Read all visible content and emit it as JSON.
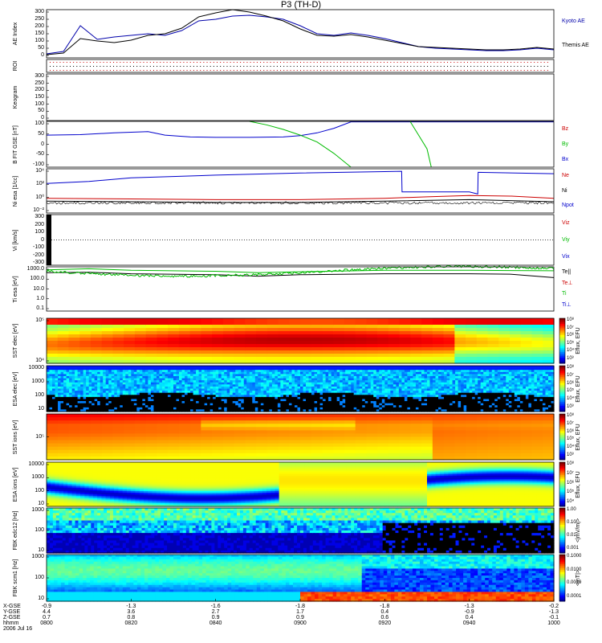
{
  "title": "P3 (TH-D)",
  "panels": [
    {
      "id": "ae",
      "ylabel": "AE Index",
      "ticks": [
        "300",
        "250",
        "200",
        "150",
        "100",
        "50",
        "0"
      ],
      "right": [
        {
          "text": "Kyoto AE",
          "color": "#0000aa"
        },
        {
          "text": "Themis AE",
          "color": "#000000"
        }
      ]
    },
    {
      "id": "roi",
      "ylabel": "ROI",
      "ticks": [],
      "right": []
    },
    {
      "id": "keogram",
      "ylabel": "Keogram",
      "ticks": [
        "300",
        "250",
        "200",
        "150",
        "100",
        "50",
        "0"
      ],
      "right": []
    },
    {
      "id": "bfgm",
      "ylabel": "B FIT\nGSE\n[nT]",
      "ticks": [
        "100",
        "50",
        "0",
        "-50",
        "-100"
      ],
      "right": [
        {
          "text": "Bz",
          "color": "#cc0000"
        },
        {
          "text": "By",
          "color": "#00bb00"
        },
        {
          "text": "Bx",
          "color": "#0000cc"
        }
      ]
    },
    {
      "id": "ni",
      "ylabel": "Ni\nesa\n[1/cc]",
      "ticks": [
        "10⁴",
        "10²",
        "10⁰",
        "10⁻²"
      ],
      "right": [
        {
          "text": "Ne",
          "color": "#cc0000"
        },
        {
          "text": "Ni",
          "color": "#000000"
        },
        {
          "text": "Npot",
          "color": "#0000cc"
        }
      ]
    },
    {
      "id": "vi",
      "ylabel": "Vi\n[km/s]",
      "ticks": [
        "300",
        "200",
        "100",
        "0",
        "-100",
        "-200",
        "-300"
      ],
      "right": [
        {
          "text": "Viz",
          "color": "#cc0000"
        },
        {
          "text": "Viy",
          "color": "#00bb00"
        },
        {
          "text": "Vix",
          "color": "#0000cc"
        }
      ]
    },
    {
      "id": "ti",
      "ylabel": "Ti\nesa\n[eV]",
      "ticks": [
        "1000.0",
        "100.0",
        "10.0",
        "1.0",
        "0.1"
      ],
      "right": [
        {
          "text": "Te||",
          "color": "#000000"
        },
        {
          "text": "Te⊥",
          "color": "#cc0000"
        },
        {
          "text": "Ti",
          "color": "#00bb00"
        },
        {
          "text": "Ti⊥",
          "color": "#0000cc"
        }
      ]
    },
    {
      "id": "sst_e",
      "ylabel": "SST\nelec\n[eV]",
      "ticks": [
        "10⁵",
        "10⁴"
      ],
      "right": []
    },
    {
      "id": "esa_e",
      "ylabel": "ESA\nelec\n[eV]",
      "ticks": [
        "10000",
        "1000",
        "100",
        "10"
      ],
      "right": []
    },
    {
      "id": "sst_i",
      "ylabel": "SST\nions\n[eV]",
      "ticks": [
        "10⁵"
      ],
      "right": []
    },
    {
      "id": "esa_i",
      "ylabel": "ESA\nions\n[eV]",
      "ticks": [
        "10000",
        "1000",
        "100",
        "10"
      ],
      "right": []
    },
    {
      "id": "fbk_e",
      "ylabel": "FBK\nedc12\n[Hz]",
      "ticks": [
        "1000",
        "100",
        "10"
      ],
      "right": []
    },
    {
      "id": "fbk_b",
      "ylabel": "FBK\nscm1\n[Hz]",
      "ticks": [
        "1000",
        "100",
        "10"
      ],
      "right": []
    }
  ],
  "colorbars": [
    {
      "label": "Eflux, EFU",
      "ticks": [
        "10⁸",
        "10⁷",
        "10⁶",
        "10⁵",
        "10⁴",
        "10³"
      ]
    },
    {
      "label": "Eflux, EFU",
      "ticks": [
        "10⁸",
        "10⁷",
        "10⁶",
        "10⁵",
        "10⁴",
        "10³"
      ]
    },
    {
      "label": "Eflux, EFU",
      "ticks": [
        "10⁸",
        "10⁷",
        "10⁶",
        "10⁵",
        "10⁴",
        "10³"
      ]
    },
    {
      "label": "Eflux, EFU",
      "ticks": [
        "10⁸",
        "10⁷",
        "10⁶",
        "10⁵",
        "10⁴"
      ]
    },
    {
      "label": "<|mV/m|>",
      "ticks": [
        "1.00",
        "0.10",
        "0.01",
        "0.001"
      ]
    },
    {
      "label": "<|nT|>",
      "ticks": [
        "0.1000",
        "0.0100",
        "0.0010",
        "0.0001"
      ]
    }
  ],
  "x_axis": {
    "rows": [
      "X-GSE",
      "Y-GSE",
      "Z-GSE",
      "hhmm",
      "2006 Jul 16"
    ],
    "columns": [
      {
        "x": "-0.9",
        "y": "4.4",
        "z": "0.7",
        "t": "0800"
      },
      {
        "x": "-1.3",
        "y": "3.6",
        "z": "0.8",
        "t": "0820"
      },
      {
        "x": "-1.6",
        "y": "2.7",
        "z": "0.9",
        "t": "0840"
      },
      {
        "x": "-1.8",
        "y": "1.7",
        "z": "0.9",
        "t": "0900"
      },
      {
        "x": "-1.8",
        "y": "0.4",
        "z": "0.6",
        "t": "0920"
      },
      {
        "x": "-1.3",
        "y": "-0.9",
        "z": "0.4",
        "t": "0940"
      },
      {
        "x": "-0.2",
        "y": "-1.3",
        "z": "-0.1",
        "t": "1000"
      }
    ]
  },
  "chart_data": {
    "type": "line",
    "time_range": [
      "0800",
      "1000"
    ],
    "ae": {
      "ylim": [
        0,
        300
      ],
      "series": [
        {
          "name": "Kyoto AE",
          "color": "#0000aa",
          "t": [
            0,
            4,
            8,
            12,
            16,
            20,
            24,
            28,
            32,
            36,
            40,
            44,
            48,
            52,
            56,
            60,
            64,
            68,
            72,
            76,
            80,
            84,
            88,
            92,
            96,
            100,
            104,
            108,
            112,
            116,
            120
          ],
          "values": [
            25,
            40,
            200,
            115,
            130,
            140,
            150,
            140,
            170,
            230,
            240,
            260,
            265,
            255,
            240,
            200,
            150,
            140,
            155,
            140,
            120,
            95,
            70,
            60,
            55,
            50,
            45,
            45,
            50,
            60,
            50
          ]
        },
        {
          "name": "Themis AE",
          "color": "#000000",
          "t": [
            0,
            4,
            8,
            12,
            16,
            20,
            24,
            28,
            32,
            36,
            40,
            44,
            48,
            52,
            56,
            60,
            64,
            68,
            72,
            76,
            80,
            84,
            88,
            92,
            96,
            100,
            104,
            108,
            112,
            116,
            120
          ],
          "values": [
            20,
            30,
            120,
            105,
            95,
            110,
            140,
            150,
            185,
            255,
            280,
            300,
            285,
            260,
            230,
            180,
            140,
            135,
            145,
            130,
            110,
            90,
            70,
            65,
            60,
            55,
            50,
            50,
            55,
            65,
            55
          ]
        }
      ]
    },
    "bfgm": {
      "ylim": [
        -100,
        100
      ],
      "series": [
        {
          "name": "Bx",
          "color": "#0000cc",
          "t": [
            0,
            8,
            16,
            24,
            28,
            34,
            40,
            48,
            56,
            60,
            64,
            68,
            72,
            120
          ],
          "values": [
            40,
            42,
            50,
            55,
            40,
            32,
            30,
            30,
            32,
            38,
            50,
            70,
            98,
            98
          ]
        },
        {
          "name": "By",
          "color": "#00bb00",
          "t": [
            48,
            52,
            56,
            60,
            64,
            68,
            72
          ],
          "values": [
            100,
            85,
            65,
            40,
            10,
            -40,
            -100
          ]
        },
        {
          "name": "By2",
          "color": "#00bb00",
          "t": [
            86,
            88,
            90,
            91
          ],
          "values": [
            100,
            40,
            -20,
            -100
          ]
        }
      ]
    },
    "ni_log": {
      "ylim": [
        -2,
        4.3
      ],
      "series": [
        {
          "name": "Npot",
          "color": "#0000cc",
          "t": [
            0,
            10,
            20,
            40,
            60,
            80,
            84,
            84.1,
            100,
            102,
            102.1,
            120
          ],
          "values": [
            2.2,
            2.5,
            3.0,
            3.4,
            3.7,
            3.9,
            3.95,
            1.0,
            1.0,
            0.7,
            3.8,
            3.6
          ]
        },
        {
          "name": "Ne",
          "color": "#cc0000",
          "t": [
            0,
            20,
            40,
            60,
            80,
            90,
            100,
            110,
            120
          ],
          "values": [
            0.1,
            0.0,
            -0.1,
            -0.1,
            0.1,
            0.3,
            0.5,
            0.4,
            0.1
          ]
        },
        {
          "name": "Ni",
          "color": "#000000",
          "t": [
            0,
            20,
            40,
            60,
            80,
            100,
            120
          ],
          "values": [
            -0.3,
            -0.4,
            -0.5,
            -0.5,
            -0.3,
            -0.1,
            -0.4
          ]
        }
      ]
    },
    "ti_log": {
      "ylim": [
        -1.2,
        3.3
      ],
      "series": [
        {
          "name": "Ti",
          "color": "#00bb00",
          "t": [
            0,
            10,
            20,
            40,
            50,
            60,
            80,
            100,
            120
          ],
          "values": [
            3.0,
            3.1,
            2.95,
            2.85,
            2.7,
            2.8,
            2.95,
            2.95,
            2.9
          ]
        },
        {
          "name": "Te||",
          "color": "#000000",
          "t": [
            0,
            10,
            20,
            40,
            50,
            60,
            80,
            100,
            110,
            120
          ],
          "values": [
            2.7,
            2.75,
            2.6,
            2.5,
            2.35,
            2.5,
            2.6,
            2.6,
            2.55,
            2.2
          ]
        }
      ]
    }
  }
}
